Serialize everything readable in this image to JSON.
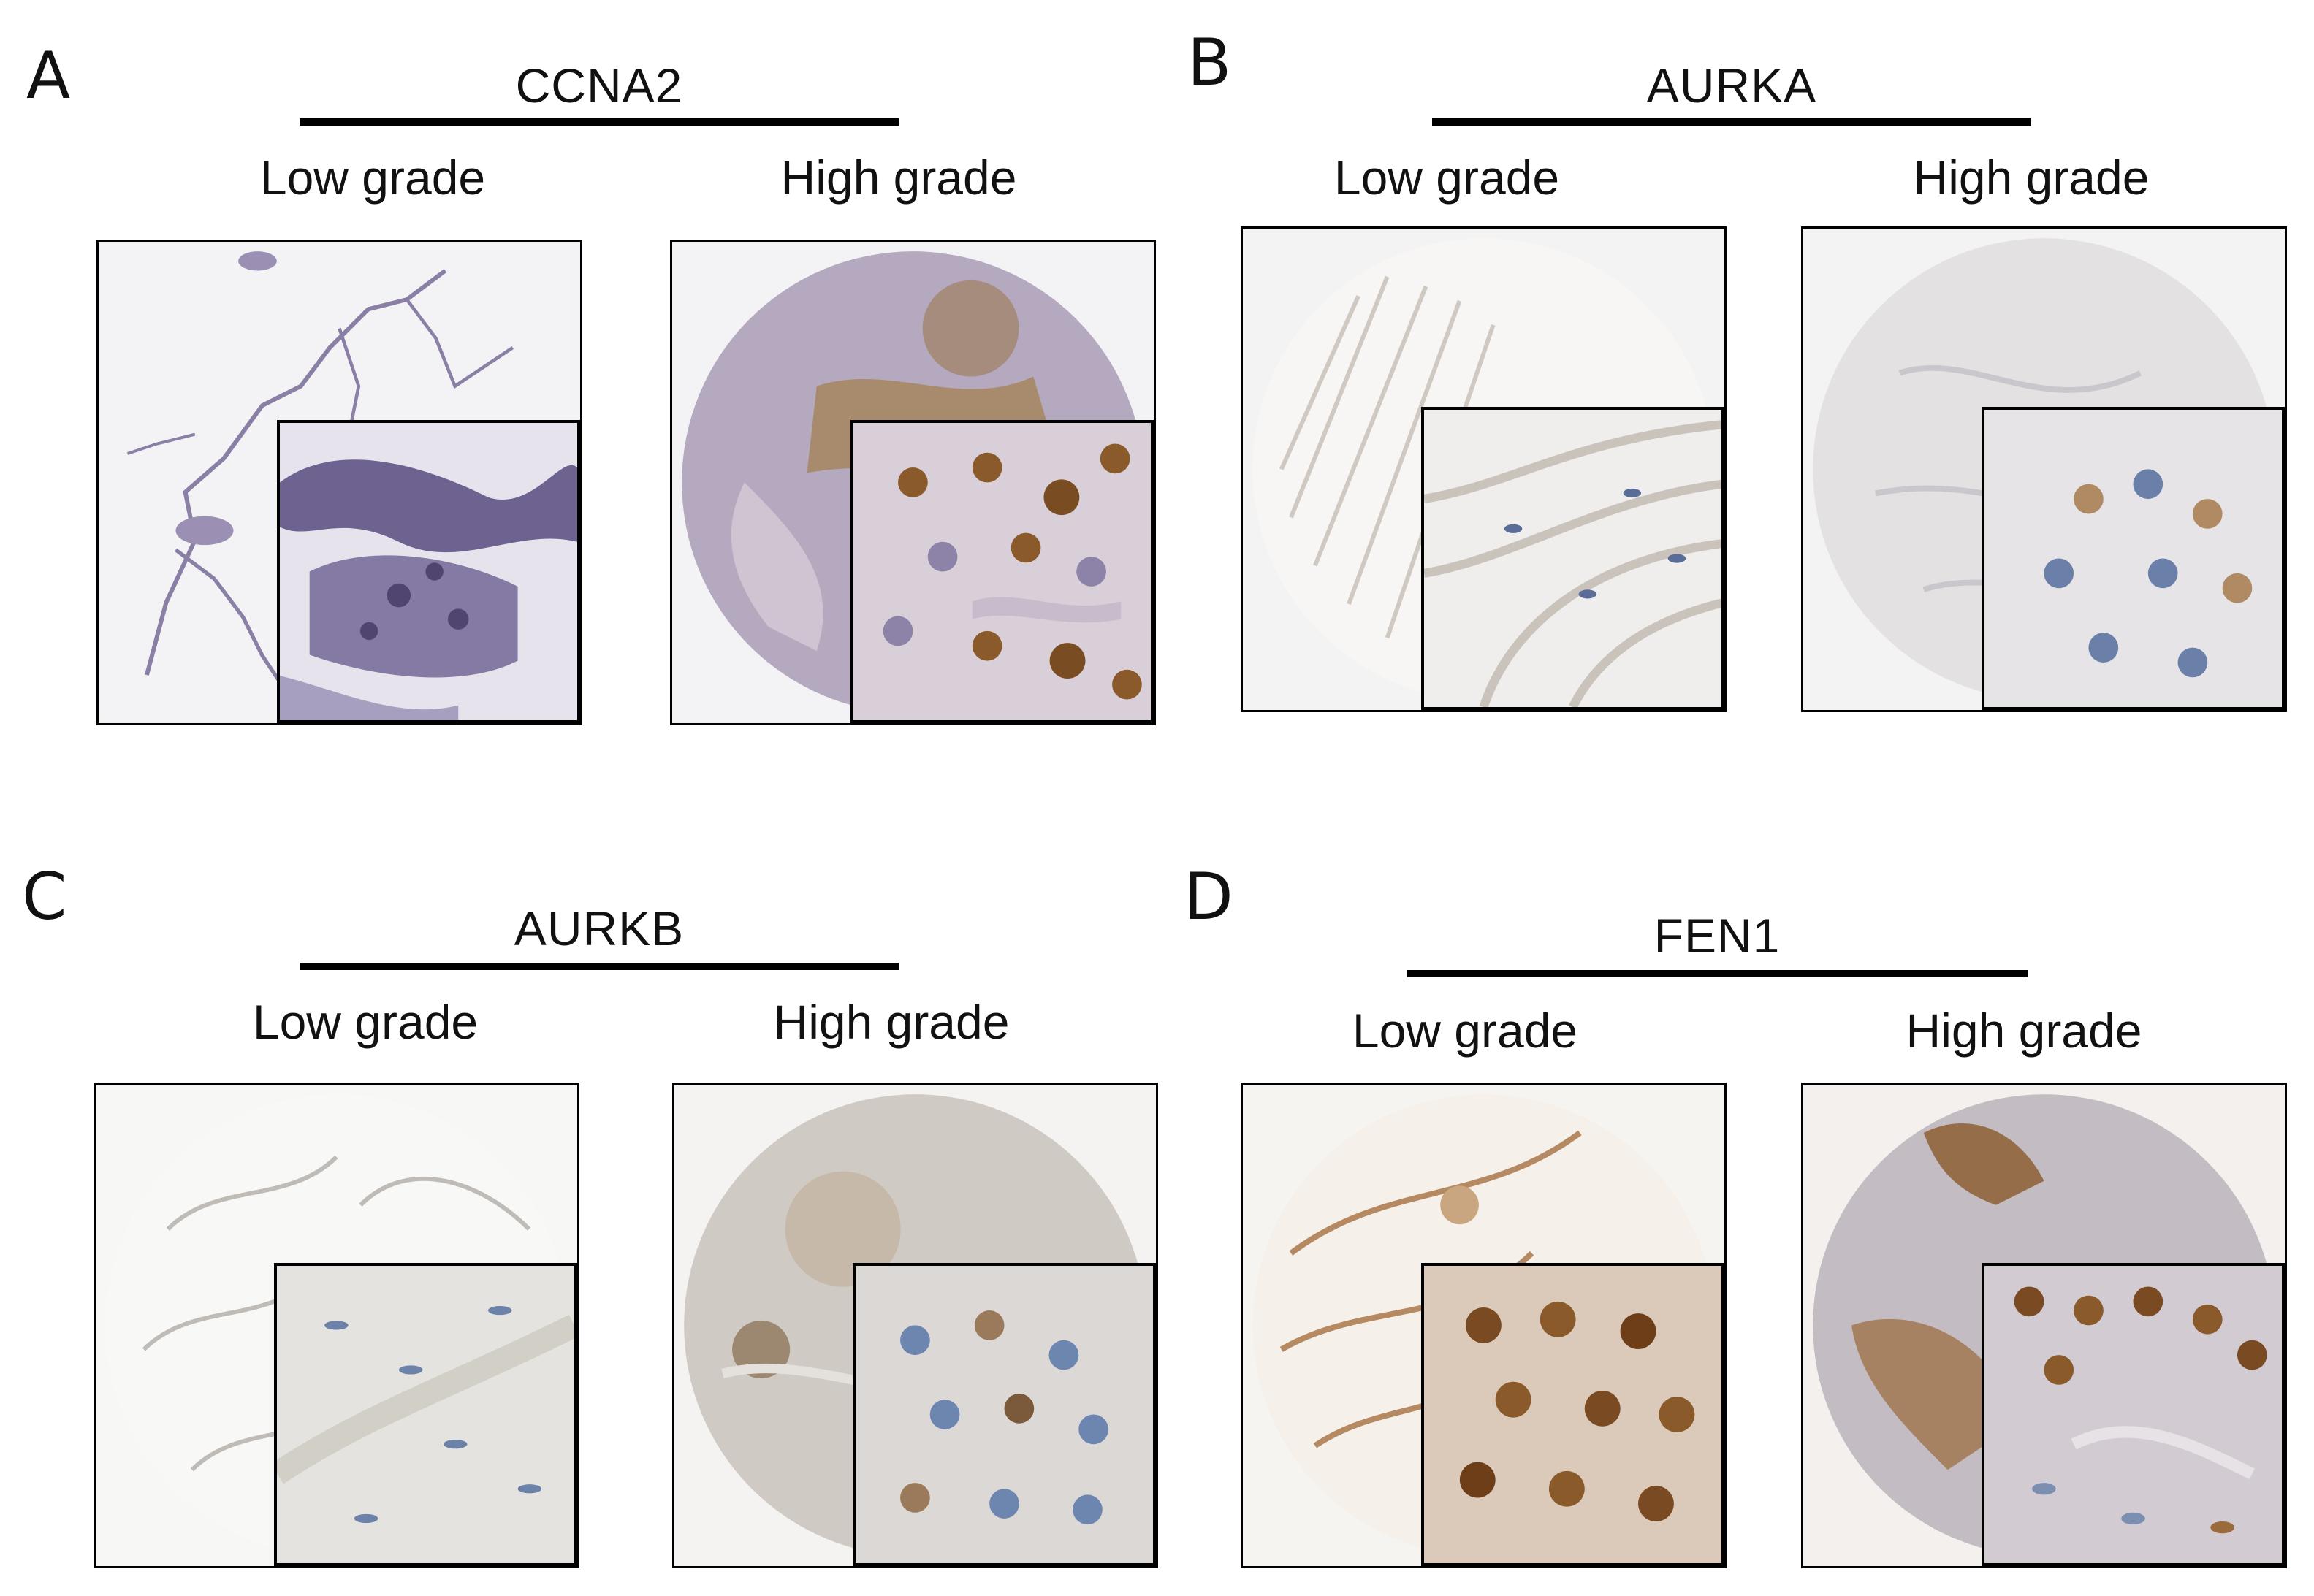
{
  "panels": [
    {
      "letter": "A",
      "gene": "CCNA2",
      "low_label": "Low grade",
      "high_label": "High grade"
    },
    {
      "letter": "B",
      "gene": "AURKA",
      "low_label": "Low grade",
      "high_label": "High grade"
    },
    {
      "letter": "C",
      "gene": "AURKB",
      "low_label": "Low grade",
      "high_label": "High grade"
    },
    {
      "letter": "D",
      "gene": "FEN1",
      "low_label": "Low grade",
      "high_label": "High grade"
    }
  ],
  "colors": {
    "hematoxylin": "#6f5f8f",
    "hematoxylin_light": "#b8b2c8",
    "dab_brown": "#8a5a2a",
    "dab_light": "#c9a680",
    "background": "#f2f1f4"
  }
}
